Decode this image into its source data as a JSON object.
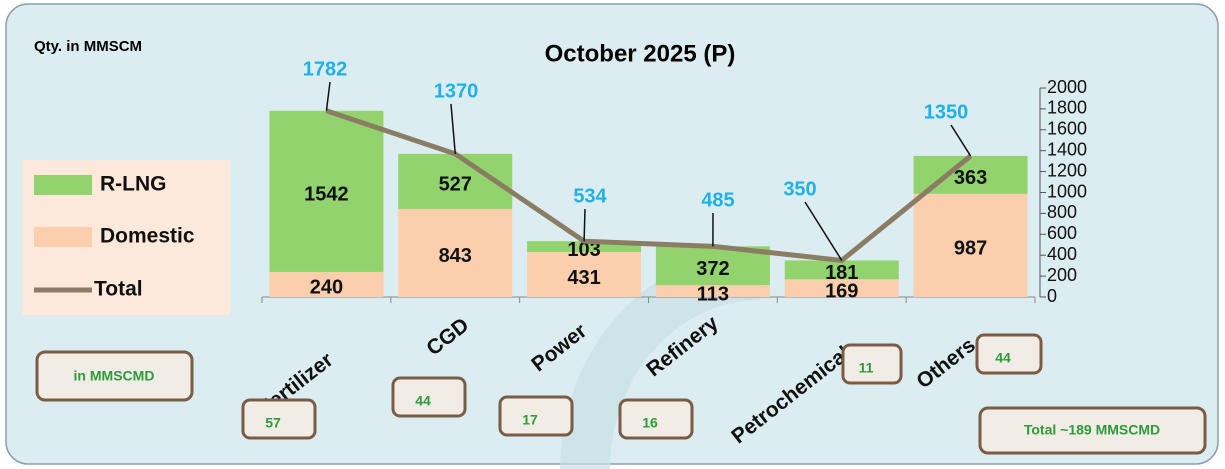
{
  "chart_data": {
    "type": "stacked_bar_line",
    "title": "October 2025 (P)",
    "unit_label": "Qty. in MMSCM",
    "categories": [
      "Fertilizer",
      "CGD",
      "Power",
      "Refinery",
      "Petrochemical",
      "Others"
    ],
    "series": [
      {
        "name": "R-LNG",
        "color": "#92d36e",
        "values": [
          1542,
          527,
          103,
          372,
          181,
          363
        ]
      },
      {
        "name": "Domestic",
        "color": "#fbcfae",
        "values": [
          240,
          843,
          431,
          113,
          169,
          987
        ]
      },
      {
        "name": "Total",
        "type": "line",
        "color": "#8b7d63",
        "label_color": "#1fb0e8",
        "values": [
          1782,
          1370,
          534,
          485,
          350,
          1350
        ]
      }
    ],
    "ylim": [
      0,
      2000
    ],
    "yticks": [
      0,
      200,
      400,
      600,
      800,
      1000,
      1200,
      1400,
      1600,
      1800,
      2000
    ],
    "daily": {
      "label": "in MMSCMD",
      "values": [
        57,
        44,
        17,
        16,
        11,
        44
      ],
      "total_label": "Total  ~189 MMSCMD"
    }
  }
}
